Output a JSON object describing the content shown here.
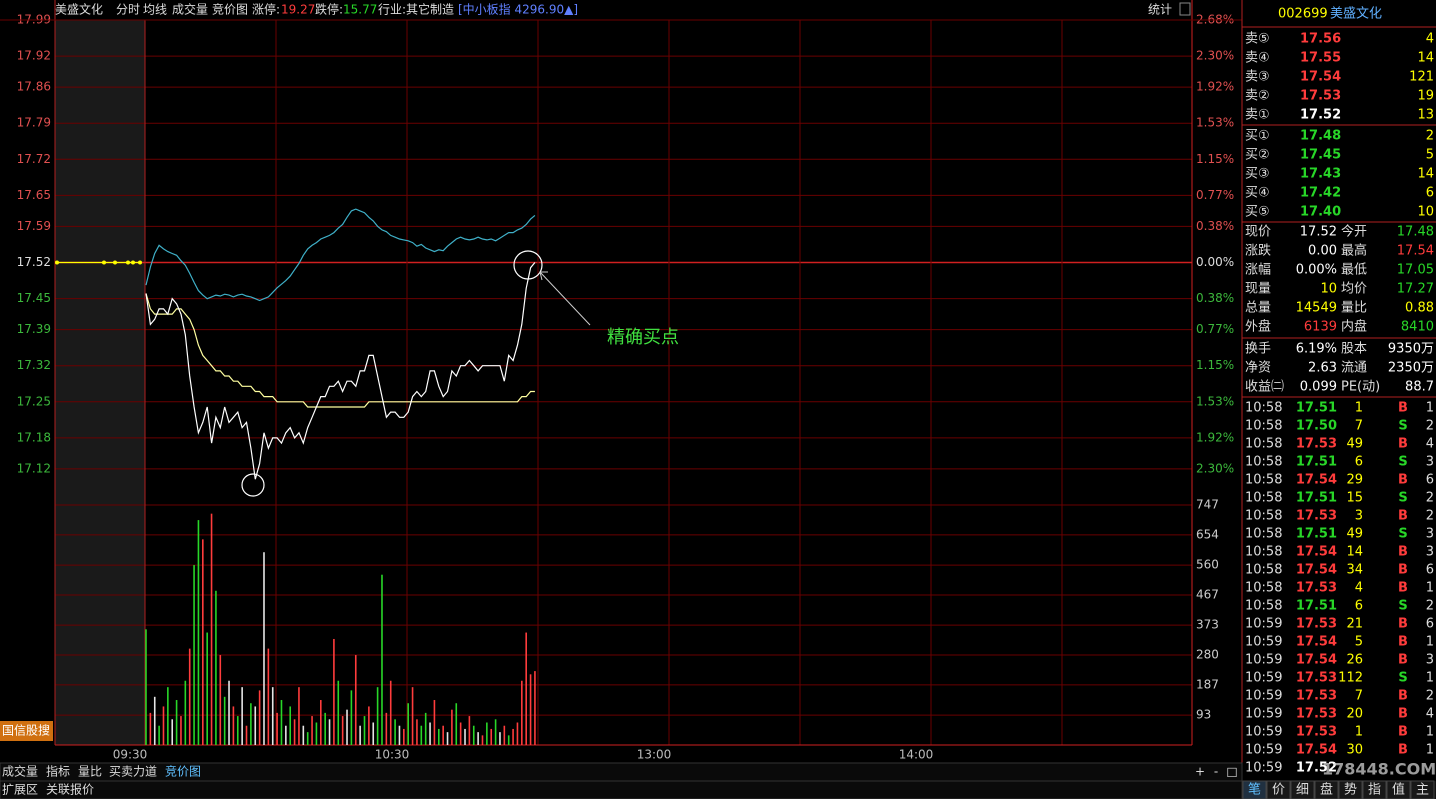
{
  "header": {
    "name": "美盛文化",
    "tabs": [
      "分时",
      "均线",
      "成交量",
      "竞价图"
    ],
    "limit_up_label": "涨停:",
    "limit_up": "19.27",
    "limit_down_label": "跌停:",
    "limit_down": "15.77",
    "industry": "行业:其它制造",
    "index": "[中小板指 4296.90▲]",
    "stats_button": "统计"
  },
  "chart": {
    "ylim": [
      17.05,
      17.99
    ],
    "price_ticks": [
      17.99,
      17.92,
      17.86,
      17.79,
      17.72,
      17.65,
      17.59,
      17.52,
      17.45,
      17.39,
      17.32,
      17.25,
      17.18,
      17.12
    ],
    "percent_labels": [
      "2.68%",
      "2.30%",
      "1.92%",
      "1.53%",
      "1.15%",
      "0.77%",
      "0.38%",
      "0.00%",
      "0.38%",
      "0.77%",
      "1.15%",
      "1.53%",
      "1.92%",
      "2.30%"
    ],
    "pct_lim": [
      -2.68,
      2.68
    ],
    "prev_close": 17.52,
    "volume_lim": [
      0,
      747
    ],
    "volume_ticks": [
      747,
      654,
      560,
      467,
      373,
      280,
      187,
      93
    ],
    "time_labels": [
      "09:30",
      "10:30",
      "13:00",
      "14:00"
    ],
    "auction": [
      17.52,
      17.52,
      17.52,
      17.52,
      17.52,
      17.52
    ],
    "price": [
      17.46,
      17.4,
      17.41,
      17.43,
      17.43,
      17.42,
      17.45,
      17.44,
      17.42,
      17.38,
      17.3,
      17.24,
      17.19,
      17.21,
      17.24,
      17.17,
      17.22,
      17.2,
      17.24,
      17.21,
      17.22,
      17.23,
      17.2,
      17.21,
      17.16,
      17.1,
      17.13,
      17.19,
      17.16,
      17.18,
      17.18,
      17.17,
      17.19,
      17.2,
      17.18,
      17.19,
      17.17,
      17.2,
      17.22,
      17.24,
      17.26,
      17.26,
      17.28,
      17.28,
      17.29,
      17.27,
      17.29,
      17.29,
      17.28,
      17.31,
      17.31,
      17.34,
      17.34,
      17.3,
      17.26,
      17.22,
      17.23,
      17.23,
      17.22,
      17.22,
      17.23,
      17.26,
      17.27,
      17.26,
      17.27,
      17.31,
      17.31,
      17.28,
      17.26,
      17.27,
      17.31,
      17.3,
      17.32,
      17.32,
      17.33,
      17.32,
      17.31,
      17.32,
      17.32,
      17.32,
      17.32,
      17.32,
      17.29,
      17.34,
      17.33,
      17.36,
      17.4,
      17.47,
      17.51,
      17.52
    ],
    "average": [
      17.46,
      17.43,
      17.42,
      17.42,
      17.42,
      17.42,
      17.42,
      17.43,
      17.43,
      17.42,
      17.41,
      17.39,
      17.36,
      17.34,
      17.33,
      17.32,
      17.31,
      17.31,
      17.3,
      17.3,
      17.29,
      17.29,
      17.28,
      17.28,
      17.28,
      17.27,
      17.27,
      17.26,
      17.26,
      17.26,
      17.25,
      17.25,
      17.25,
      17.25,
      17.25,
      17.25,
      17.25,
      17.24,
      17.24,
      17.24,
      17.24,
      17.24,
      17.24,
      17.24,
      17.24,
      17.24,
      17.24,
      17.24,
      17.24,
      17.24,
      17.24,
      17.25,
      17.25,
      17.25,
      17.25,
      17.25,
      17.25,
      17.25,
      17.25,
      17.25,
      17.25,
      17.25,
      17.25,
      17.25,
      17.25,
      17.25,
      17.25,
      17.25,
      17.25,
      17.25,
      17.25,
      17.25,
      17.25,
      17.25,
      17.25,
      17.25,
      17.25,
      17.25,
      17.25,
      17.25,
      17.25,
      17.25,
      17.25,
      17.25,
      17.25,
      17.25,
      17.26,
      17.26,
      17.27,
      17.27
    ],
    "index_change": [
      -0.25,
      -0.05,
      0.1,
      0.19,
      0.15,
      0.12,
      0.1,
      0.08,
      0.02,
      -0.03,
      -0.12,
      -0.22,
      -0.31,
      -0.36,
      -0.4,
      -0.38,
      -0.36,
      -0.37,
      -0.35,
      -0.36,
      -0.38,
      -0.36,
      -0.35,
      -0.37,
      -0.38,
      -0.4,
      -0.42,
      -0.4,
      -0.38,
      -0.33,
      -0.28,
      -0.24,
      -0.2,
      -0.15,
      -0.08,
      -0.01,
      0.08,
      0.15,
      0.19,
      0.22,
      0.26,
      0.28,
      0.3,
      0.33,
      0.38,
      0.42,
      0.5,
      0.57,
      0.59,
      0.57,
      0.55,
      0.5,
      0.46,
      0.4,
      0.36,
      0.34,
      0.3,
      0.28,
      0.26,
      0.25,
      0.24,
      0.22,
      0.18,
      0.2,
      0.16,
      0.14,
      0.12,
      0.14,
      0.13,
      0.18,
      0.22,
      0.26,
      0.28,
      0.26,
      0.25,
      0.26,
      0.28,
      0.26,
      0.25,
      0.26,
      0.24,
      0.27,
      0.3,
      0.33,
      0.33,
      0.36,
      0.38,
      0.42,
      0.48,
      0.52
    ],
    "volumes": [
      360,
      100,
      150,
      60,
      120,
      180,
      80,
      140,
      90,
      200,
      300,
      560,
      700,
      640,
      350,
      720,
      480,
      280,
      150,
      200,
      120,
      90,
      180,
      60,
      130,
      120,
      170,
      600,
      300,
      180,
      100,
      140,
      60,
      120,
      80,
      180,
      60,
      40,
      90,
      70,
      140,
      100,
      80,
      330,
      200,
      90,
      110,
      170,
      280,
      60,
      90,
      120,
      70,
      180,
      530,
      100,
      200,
      80,
      60,
      50,
      130,
      180,
      80,
      60,
      100,
      70,
      140,
      50,
      60,
      40,
      110,
      130,
      70,
      50,
      90,
      60,
      40,
      30,
      70,
      50,
      80,
      40,
      60,
      30,
      50,
      70,
      200,
      350,
      220,
      230
    ],
    "volume_colors": [
      "g",
      "r",
      "w",
      "g",
      "r",
      "g",
      "w",
      "g",
      "r",
      "g",
      "r",
      "g",
      "g",
      "r",
      "g",
      "r",
      "g",
      "r",
      "g",
      "w",
      "r",
      "g",
      "w",
      "r",
      "g",
      "w",
      "r",
      "w",
      "r",
      "w",
      "r",
      "g",
      "w",
      "g",
      "r",
      "r",
      "w",
      "g",
      "r",
      "g",
      "r",
      "g",
      "w",
      "r",
      "g",
      "r",
      "w",
      "g",
      "r",
      "w",
      "g",
      "r",
      "w",
      "g",
      "g",
      "r",
      "r",
      "g",
      "w",
      "r",
      "g",
      "r",
      "r",
      "g",
      "g",
      "w",
      "r",
      "g",
      "r",
      "w",
      "r",
      "g",
      "r",
      "w",
      "r",
      "g",
      "w",
      "r",
      "g",
      "r",
      "g",
      "w",
      "r",
      "g",
      "r",
      "r",
      "r",
      "r",
      "r",
      "r"
    ],
    "palette": {
      "r": "#ff3c3c",
      "g": "#28d728",
      "w": "#e6e6e6",
      "price": "#ffffff",
      "average": "#ffffa0",
      "index": "#3fb0c8",
      "auction": "#ffff00"
    },
    "annotation": "精确买点",
    "button": "国信股搜"
  },
  "quote": {
    "code": "002699",
    "name": "美盛文化",
    "asks": [
      [
        "卖⑤",
        "17.56",
        "4"
      ],
      [
        "卖④",
        "17.55",
        "14"
      ],
      [
        "卖③",
        "17.54",
        "121"
      ],
      [
        "卖②",
        "17.53",
        "19"
      ],
      [
        "卖①",
        "17.52",
        "13"
      ]
    ],
    "bids": [
      [
        "买①",
        "17.48",
        "2"
      ],
      [
        "买②",
        "17.45",
        "5"
      ],
      [
        "买③",
        "17.43",
        "14"
      ],
      [
        "买④",
        "17.42",
        "6"
      ],
      [
        "买⑤",
        "17.40",
        "10"
      ]
    ],
    "stats": [
      [
        "现价",
        "17.52",
        "今开",
        "17.48"
      ],
      [
        "涨跌",
        "0.00",
        "最高",
        "17.54"
      ],
      [
        "涨幅",
        "0.00%",
        "最低",
        "17.05"
      ],
      [
        "现量",
        "10",
        "均价",
        "17.27"
      ],
      [
        "总量",
        "14549",
        "量比",
        "0.88"
      ],
      [
        "外盘",
        "6139",
        "内盘",
        "8410"
      ],
      [
        "换手",
        "6.19%",
        "股本",
        "9350万"
      ],
      [
        "净资",
        "2.63",
        "流通",
        "2350万"
      ],
      [
        "收益㈡",
        "0.099",
        "PE(动)",
        "88.7"
      ]
    ],
    "stat_colors": [
      [
        "#fff",
        "#28d728"
      ],
      [
        "#fff",
        "#ff3c3c"
      ],
      [
        "#fff",
        "#28d728"
      ],
      [
        "#ffff00",
        "#28d728"
      ],
      [
        "#ffff00",
        "#ffff00"
      ],
      [
        "#ff3c3c",
        "#28d728"
      ],
      [
        "#fff",
        "#fff"
      ],
      [
        "#fff",
        "#fff"
      ],
      [
        "#fff",
        "#fff"
      ]
    ],
    "trades": [
      [
        "10:58",
        "17.51",
        "1",
        "B",
        "1"
      ],
      [
        "10:58",
        "17.50",
        "7",
        "S",
        "2"
      ],
      [
        "10:58",
        "17.53",
        "49",
        "B",
        "4"
      ],
      [
        "10:58",
        "17.51",
        "6",
        "S",
        "3"
      ],
      [
        "10:58",
        "17.54",
        "29",
        "B",
        "6"
      ],
      [
        "10:58",
        "17.51",
        "15",
        "S",
        "2"
      ],
      [
        "10:58",
        "17.53",
        "3",
        "B",
        "2"
      ],
      [
        "10:58",
        "17.51",
        "49",
        "S",
        "3"
      ],
      [
        "10:58",
        "17.54",
        "14",
        "B",
        "3"
      ],
      [
        "10:58",
        "17.54",
        "34",
        "B",
        "6"
      ],
      [
        "10:58",
        "17.53",
        "4",
        "B",
        "1"
      ],
      [
        "10:58",
        "17.51",
        "6",
        "S",
        "2"
      ],
      [
        "10:59",
        "17.53",
        "21",
        "B",
        "6"
      ],
      [
        "10:59",
        "17.54",
        "5",
        "B",
        "1"
      ],
      [
        "10:59",
        "17.54",
        "26",
        "B",
        "3"
      ],
      [
        "10:59",
        "17.53",
        "112",
        "S",
        "1"
      ],
      [
        "10:59",
        "17.53",
        "7",
        "B",
        "2"
      ],
      [
        "10:59",
        "17.53",
        "20",
        "B",
        "4"
      ],
      [
        "10:59",
        "17.53",
        "1",
        "B",
        "1"
      ],
      [
        "10:59",
        "17.54",
        "30",
        "B",
        "1"
      ],
      [
        "10:59",
        "17.52"
      ]
    ],
    "watermark": "178448.COM",
    "tabs": [
      "笔",
      "价",
      "细",
      "盘",
      "势",
      "指",
      "值",
      "主"
    ]
  },
  "footer": {
    "tabs": [
      "成交量",
      "指标",
      "量比",
      "买卖力道",
      "竞价图"
    ],
    "tabs2": [
      "扩展区",
      "关联报价"
    ],
    "buttons": [
      "+",
      "-",
      "□"
    ]
  }
}
